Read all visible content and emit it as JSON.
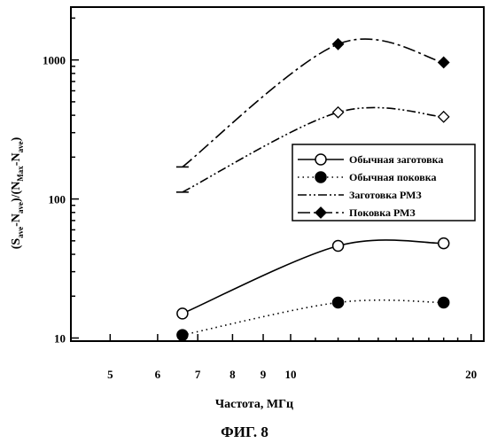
{
  "chart_data": {
    "type": "line",
    "title": "",
    "xlabel": "Частота, МГц",
    "ylabel_parts": [
      "(S",
      "ave",
      "-N",
      "ave",
      ")/(N",
      "Max",
      "-N",
      "ave",
      ")"
    ],
    "xscale": "log",
    "yscale": "log",
    "xlim": [
      4.3,
      21
    ],
    "ylim": [
      9.5,
      2400
    ],
    "x_ticks": [
      5,
      6,
      7,
      8,
      9,
      10,
      20
    ],
    "y_ticks": [
      10,
      100,
      1000
    ],
    "grid": false,
    "legend_position": "right",
    "series": [
      {
        "name": "Обычная заготовка",
        "marker": "circle-open",
        "line": "solid",
        "x": [
          6.6,
          12,
          18
        ],
        "y": [
          15,
          46,
          48
        ]
      },
      {
        "name": "Обычная поковка",
        "marker": "circle-filled",
        "line": "dotted",
        "x": [
          6.6,
          12,
          18
        ],
        "y": [
          10.5,
          18,
          18
        ]
      },
      {
        "name": "Заготовка РМЗ",
        "marker": "diamond-open",
        "line": "dash-dot-dot",
        "x": [
          6.6,
          12,
          18
        ],
        "y": [
          112,
          420,
          390
        ]
      },
      {
        "name": "Поковка РМЗ",
        "marker": "diamond-filled",
        "line": "dash-dot",
        "x": [
          6.6,
          12,
          18
        ],
        "y": [
          170,
          1300,
          960
        ]
      }
    ]
  },
  "caption": "ФИГ. 8"
}
